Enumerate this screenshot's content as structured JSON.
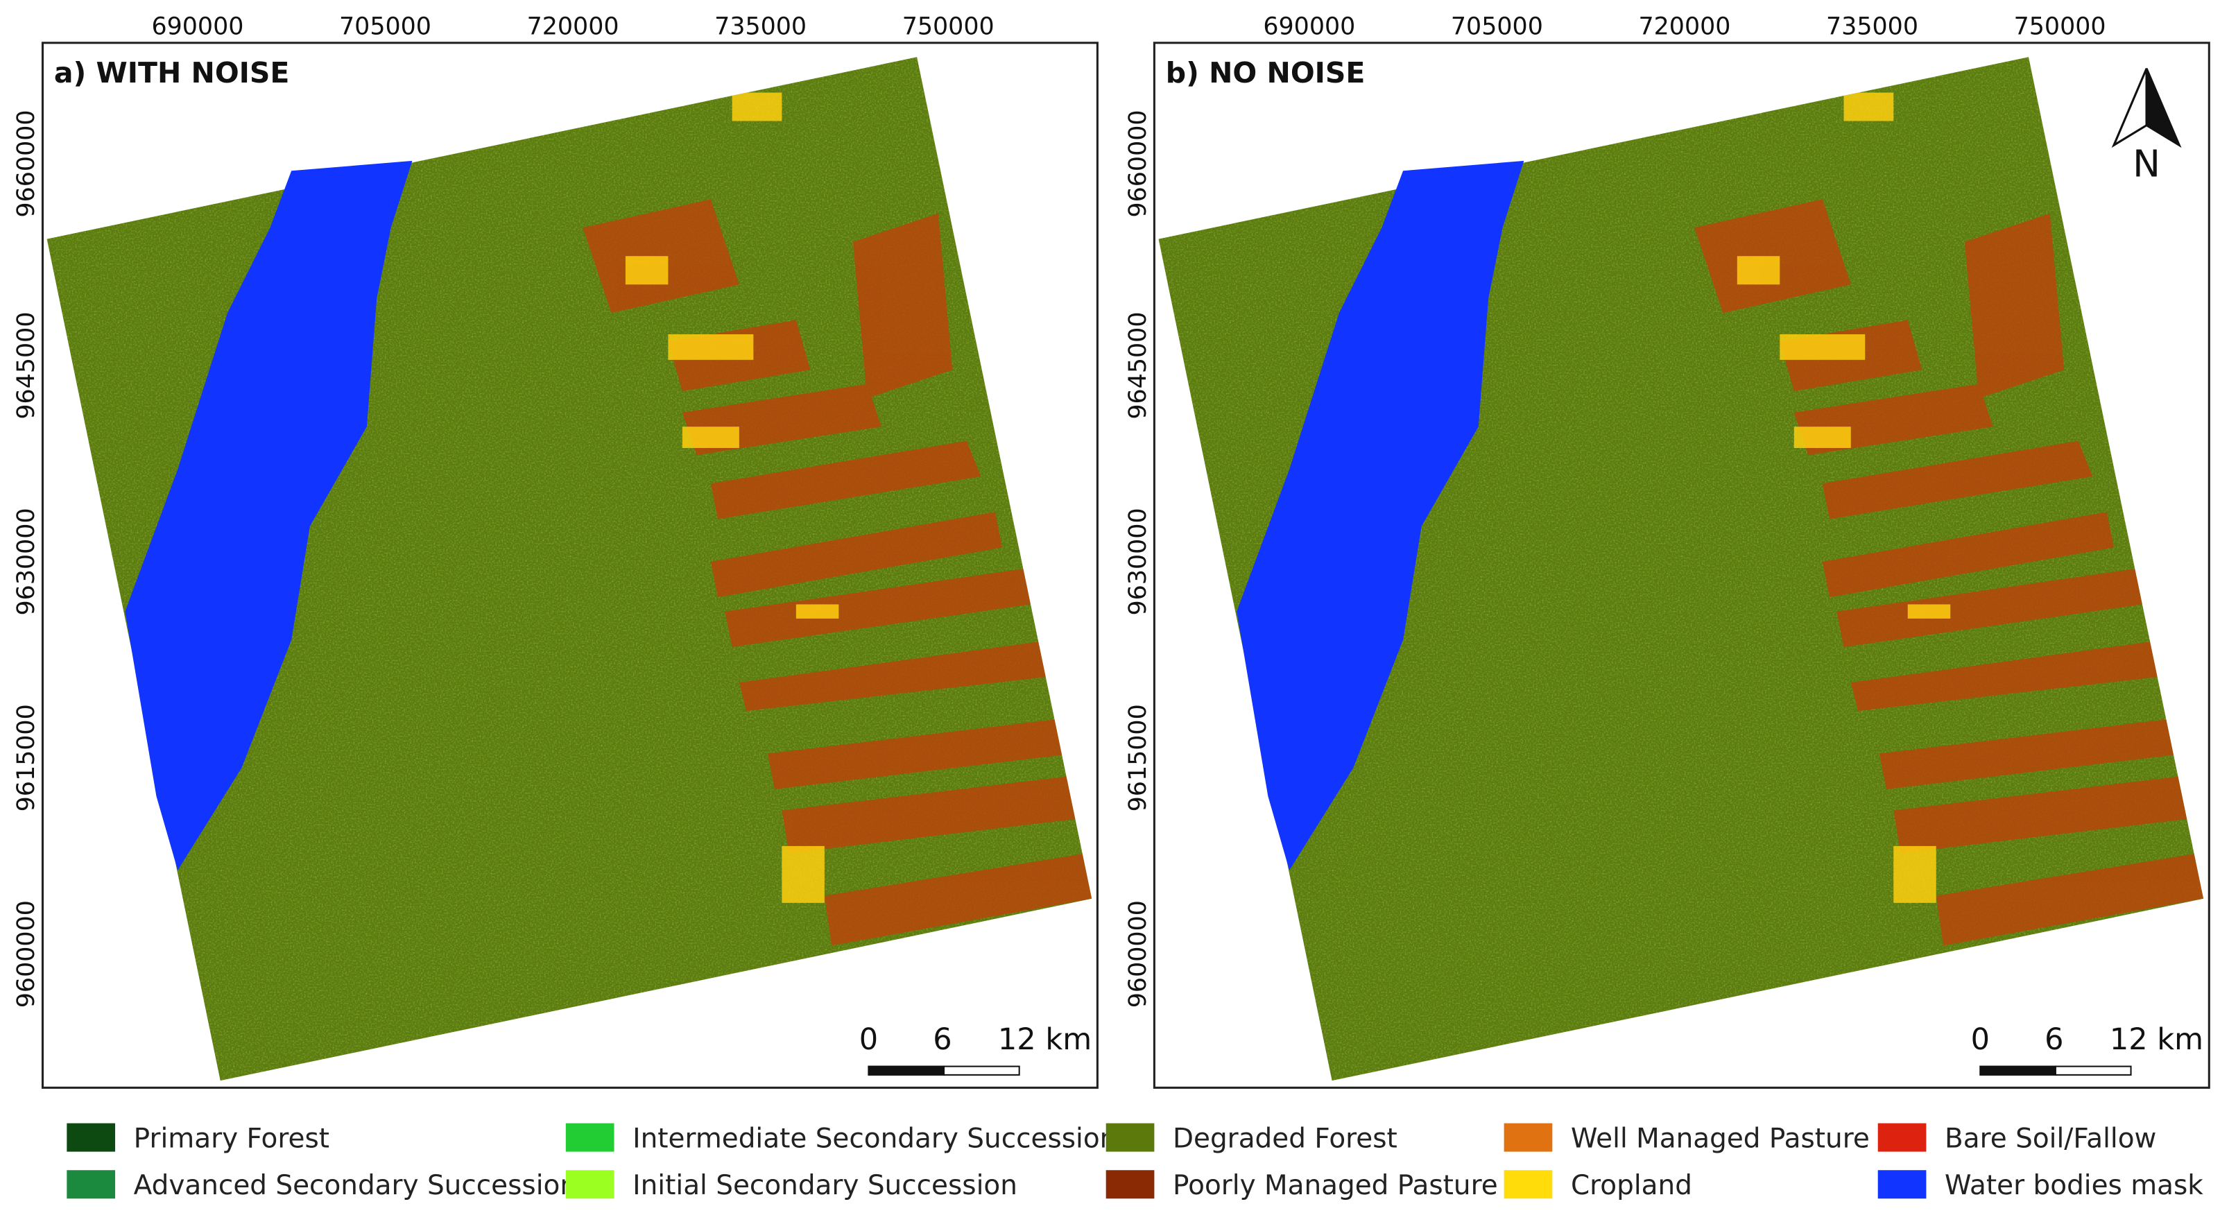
{
  "panels": [
    {
      "title": "a) WITH NOISE",
      "x_ticks": [
        "690000",
        "705000",
        "720000",
        "735000",
        "750000"
      ],
      "y_ticks": [
        "9660000",
        "9645000",
        "9630000",
        "9615000",
        "9600000"
      ],
      "scale_bar": [
        "0",
        "6",
        "12 km"
      ]
    },
    {
      "title": "b) NO NOISE",
      "x_ticks": [
        "690000",
        "705000",
        "720000",
        "735000",
        "750000"
      ],
      "y_ticks": [
        "9660000",
        "9645000",
        "9630000",
        "9615000",
        "9600000"
      ],
      "scale_bar": [
        "0",
        "6",
        "12 km"
      ],
      "north_arrow": "N"
    }
  ],
  "legend": [
    {
      "label": "Primary Forest",
      "color": "#0c4a12"
    },
    {
      "label": "Advanced Secondary Succession",
      "color": "#1b8a3e"
    },
    {
      "label": "Intermediate Secondary Succession",
      "color": "#22cc33"
    },
    {
      "label": "Initial Secondary Succession",
      "color": "#9cff22"
    },
    {
      "label": "Degraded Forest",
      "color": "#5c7a0c"
    },
    {
      "label": "Poorly Managed Pasture",
      "color": "#8a2a04"
    },
    {
      "label": "Well Managed Pasture",
      "color": "#e07212"
    },
    {
      "label": "Cropland",
      "color": "#ffdc0a"
    },
    {
      "label": "Bare Soil/Fallow",
      "color": "#dd2210"
    },
    {
      "label": "Water bodies mask",
      "color": "#1234ff"
    }
  ]
}
